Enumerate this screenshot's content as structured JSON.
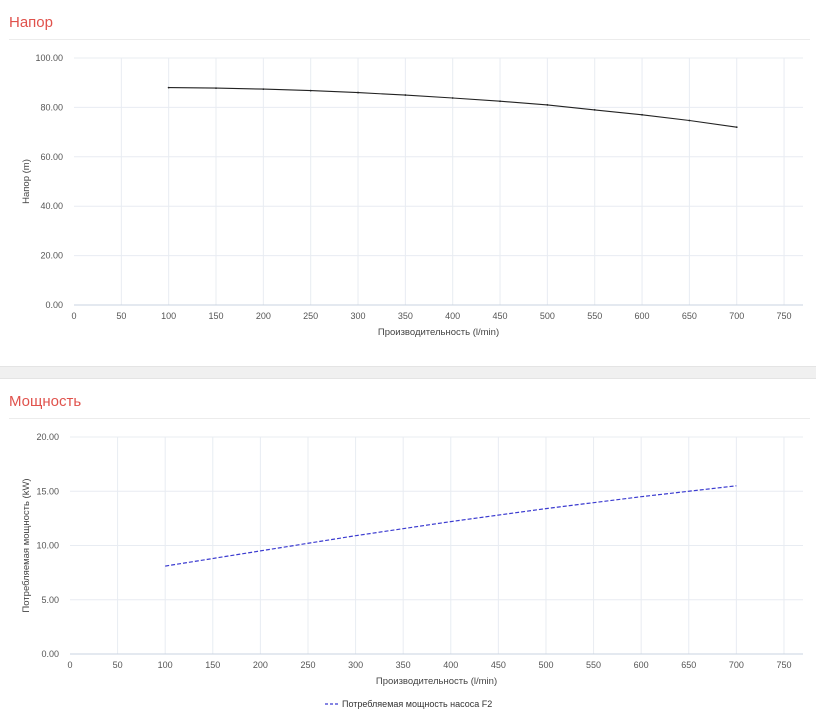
{
  "panels": {
    "head": {
      "title": "Напор"
    },
    "power": {
      "title": "Мощность"
    }
  },
  "colors": {
    "title": "#e0524c",
    "grid": "#e8ecf2",
    "axis_text": "#555555",
    "head_line": "#222222",
    "power_line": "#3b3bd0"
  },
  "chart_data": [
    {
      "type": "line",
      "title": "",
      "xlabel": "Производительность (l/min)",
      "ylabel": "Напор (m)",
      "xlim": [
        0,
        770
      ],
      "ylim": [
        0,
        100
      ],
      "x_ticks": [
        0,
        50,
        100,
        150,
        200,
        250,
        300,
        350,
        400,
        450,
        500,
        550,
        600,
        650,
        700,
        750
      ],
      "x_tick_labels": [
        "0",
        "50",
        "100",
        "150",
        "200",
        "250",
        "300",
        "350",
        "400",
        "450",
        "500",
        "550",
        "600",
        "650",
        "700",
        "750"
      ],
      "y_ticks": [
        0,
        20,
        40,
        60,
        80,
        100
      ],
      "y_tick_labels": [
        "0.00",
        "20.00",
        "40.00",
        "60.00",
        "80.00",
        "100.00"
      ],
      "grid": true,
      "series": [
        {
          "style": "solid",
          "color": "#222222",
          "x": [
            100,
            150,
            200,
            250,
            300,
            350,
            400,
            450,
            500,
            550,
            600,
            650,
            700
          ],
          "y": [
            88.0,
            87.8,
            87.4,
            86.8,
            86.0,
            85.0,
            83.8,
            82.5,
            81.0,
            79.0,
            77.0,
            74.7,
            72.0
          ]
        }
      ]
    },
    {
      "type": "line",
      "title": "",
      "xlabel": "Производительность (l/min)",
      "ylabel": "Потребляемая мощность (kW)",
      "xlim": [
        0,
        770
      ],
      "ylim": [
        0,
        20
      ],
      "x_ticks": [
        0,
        50,
        100,
        150,
        200,
        250,
        300,
        350,
        400,
        450,
        500,
        550,
        600,
        650,
        700,
        750
      ],
      "x_tick_labels": [
        "0",
        "50",
        "100",
        "150",
        "200",
        "250",
        "300",
        "350",
        "400",
        "450",
        "500",
        "550",
        "600",
        "650",
        "700",
        "750"
      ],
      "y_ticks": [
        0,
        5,
        10,
        15,
        20
      ],
      "y_tick_labels": [
        "0.00",
        "5.00",
        "10.00",
        "15.00",
        "20.00"
      ],
      "grid": true,
      "legend_position": "bottom-center",
      "series": [
        {
          "name": "Потребляемая мощность насоса F2",
          "style": "dashed",
          "color": "#3b3bd0",
          "x": [
            100,
            200,
            300,
            400,
            500,
            600,
            700
          ],
          "y": [
            8.1,
            9.5,
            10.9,
            12.2,
            13.4,
            14.5,
            15.5
          ]
        }
      ]
    }
  ]
}
